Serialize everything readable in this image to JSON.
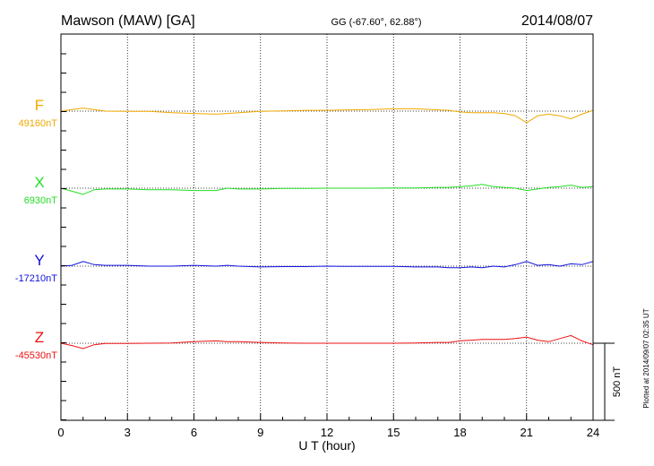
{
  "chart_data": {
    "type": "line",
    "title": "Mawson (MAW)  [GA]",
    "coords": "GG (-67.60°,  62.88°)",
    "date": "2014/08/07",
    "xlabel": "U T (hour)",
    "xlim": [
      0,
      24
    ],
    "xticks": [
      "0",
      "3",
      "6",
      "9",
      "12",
      "15",
      "18",
      "21",
      "24"
    ],
    "grid": true,
    "scale_bar_label": "500 nT",
    "scale_bar_nT": 500,
    "plotted_note": "Plotted at 2014/09/07 02:35 UT",
    "x": [
      0,
      0.5,
      1,
      1.5,
      2,
      3,
      4,
      5,
      6,
      7,
      7.5,
      8,
      9,
      10,
      11,
      12,
      13,
      14,
      15,
      16,
      17,
      17.5,
      18,
      18.5,
      19,
      19.5,
      20,
      20.5,
      21,
      21.5,
      22,
      22.5,
      23,
      23.5,
      24
    ],
    "series": [
      {
        "name": "F",
        "baseline_label": "49160nT",
        "color": "#f0a800",
        "values": [
          49160,
          49170,
          49180,
          49170,
          49160,
          49158,
          49158,
          49150,
          49145,
          49140,
          49145,
          49150,
          49158,
          49162,
          49165,
          49165,
          49168,
          49170,
          49175,
          49175,
          49168,
          49165,
          49155,
          49150,
          49150,
          49150,
          49145,
          49130,
          49085,
          49130,
          49140,
          49130,
          49110,
          49140,
          49165
        ]
      },
      {
        "name": "X",
        "baseline_label": "6930nT",
        "color": "#22dd22",
        "values": [
          6930,
          6910,
          6890,
          6920,
          6925,
          6925,
          6920,
          6920,
          6915,
          6915,
          6930,
          6925,
          6925,
          6928,
          6928,
          6930,
          6930,
          6930,
          6932,
          6932,
          6935,
          6935,
          6940,
          6945,
          6955,
          6940,
          6935,
          6930,
          6915,
          6925,
          6935,
          6940,
          6950,
          6935,
          6940
        ]
      },
      {
        "name": "Y",
        "baseline_label": "-17210nT",
        "color": "#1010e0",
        "values": [
          -17210,
          -17205,
          -17180,
          -17200,
          -17205,
          -17205,
          -17210,
          -17210,
          -17205,
          -17210,
          -17205,
          -17210,
          -17215,
          -17213,
          -17213,
          -17210,
          -17212,
          -17212,
          -17212,
          -17215,
          -17215,
          -17220,
          -17220,
          -17215,
          -17220,
          -17210,
          -17215,
          -17200,
          -17180,
          -17205,
          -17200,
          -17210,
          -17195,
          -17200,
          -17180
        ]
      },
      {
        "name": "Z",
        "baseline_label": "-45530nT",
        "color": "#ee1111",
        "values": [
          -45530,
          -45545,
          -45565,
          -45540,
          -45532,
          -45532,
          -45530,
          -45528,
          -45520,
          -45515,
          -45520,
          -45520,
          -45525,
          -45528,
          -45530,
          -45530,
          -45530,
          -45530,
          -45530,
          -45528,
          -45525,
          -45525,
          -45515,
          -45510,
          -45505,
          -45505,
          -45505,
          -45500,
          -45490,
          -45510,
          -45520,
          -45500,
          -45480,
          -45515,
          -45540
        ]
      }
    ]
  }
}
